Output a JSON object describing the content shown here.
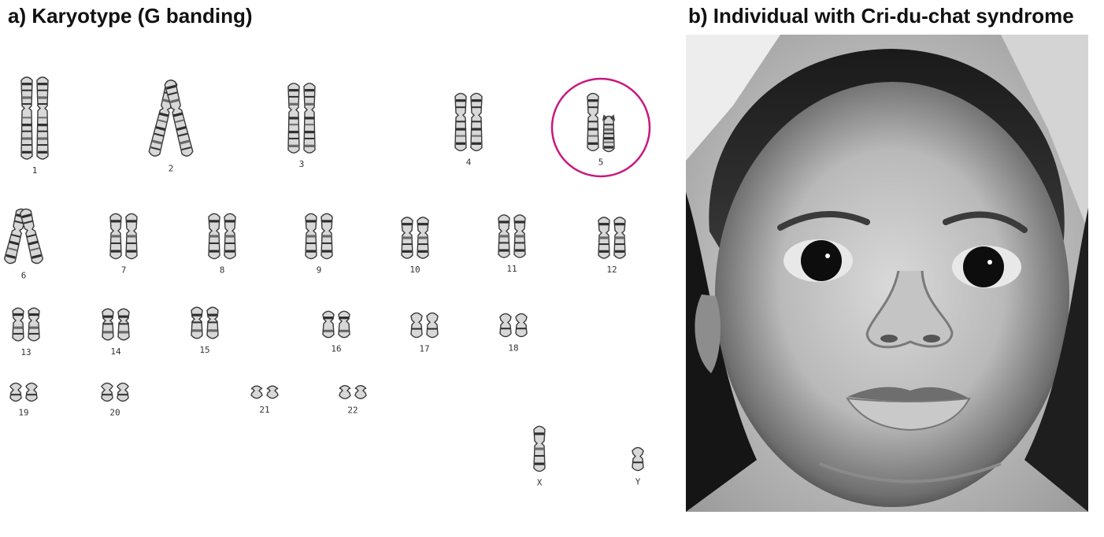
{
  "panel_a": {
    "title": "a) Karyotype (G banding)",
    "highlight_color": "#c8177e",
    "highlighted_pair": "5",
    "pairs": [
      {
        "label": "1",
        "size": 1.0,
        "tilt": 0
      },
      {
        "label": "2",
        "size": 0.95,
        "tilt": 1
      },
      {
        "label": "3",
        "size": 0.85,
        "tilt": 0
      },
      {
        "label": "4",
        "size": 0.7,
        "tilt": 0
      },
      {
        "label": "5",
        "size": 0.7,
        "tilt": 0,
        "deleted_arm": true
      },
      {
        "label": "6",
        "size": 0.68,
        "tilt": 1
      },
      {
        "label": "7",
        "size": 0.55,
        "tilt": 0
      },
      {
        "label": "8",
        "size": 0.55,
        "tilt": 0
      },
      {
        "label": "9",
        "size": 0.55,
        "tilt": 0
      },
      {
        "label": "10",
        "size": 0.5,
        "tilt": 0
      },
      {
        "label": "11",
        "size": 0.52,
        "tilt": 0
      },
      {
        "label": "12",
        "size": 0.5,
        "tilt": 0
      },
      {
        "label": "13",
        "size": 0.4,
        "tilt": 0
      },
      {
        "label": "14",
        "size": 0.38,
        "tilt": 0
      },
      {
        "label": "15",
        "size": 0.38,
        "tilt": 0
      },
      {
        "label": "16",
        "size": 0.32,
        "tilt": 0
      },
      {
        "label": "17",
        "size": 0.3,
        "tilt": 0
      },
      {
        "label": "18",
        "size": 0.28,
        "tilt": 0
      },
      {
        "label": "19",
        "size": 0.22,
        "tilt": 0
      },
      {
        "label": "20",
        "size": 0.22,
        "tilt": 0
      },
      {
        "label": "21",
        "size": 0.15,
        "tilt": 0
      },
      {
        "label": "22",
        "size": 0.16,
        "tilt": 0
      },
      {
        "label": "X",
        "size": 0.55,
        "tilt": 0,
        "single": true
      },
      {
        "label": "Y",
        "size": 0.28,
        "tilt": 0,
        "single": true
      }
    ]
  },
  "panel_b": {
    "title": "b) Individual with Cri-du-chat syndrome"
  }
}
